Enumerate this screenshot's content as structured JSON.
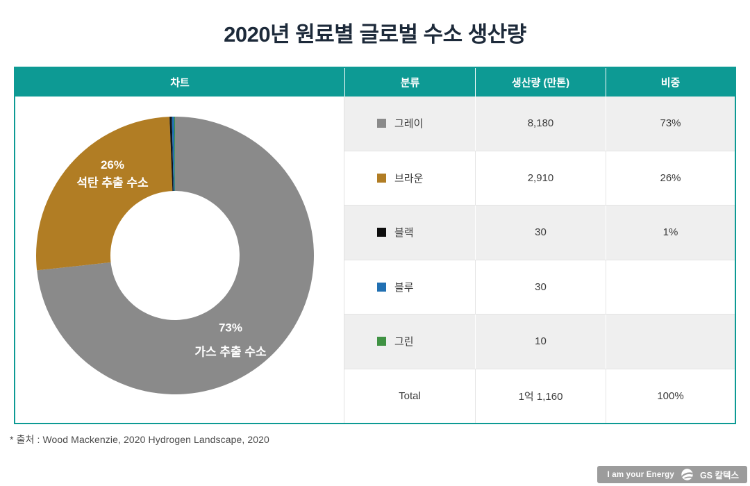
{
  "title": "2020년 원료별 글로벌 수소 생산량",
  "colors": {
    "teal_accent": "#0d9a94",
    "title_navy": "#1d2a3a",
    "row_alt_bg": "#efefef",
    "badge_gray": "#9c9c9c",
    "slice_gray": "#8a8a8a",
    "slice_brown": "#b17d24",
    "slice_black": "#10151c",
    "slice_blue": "#2170b2",
    "slice_green": "#3f9243"
  },
  "table": {
    "headers": [
      "차트",
      "분류",
      "생산량 (만톤)",
      "비중"
    ],
    "rows": [
      {
        "label": "그레이",
        "color": "#8a8a8a",
        "production": "8,180",
        "share": "73%"
      },
      {
        "label": "브라운",
        "color": "#b17d24",
        "production": "2,910",
        "share": "26%"
      },
      {
        "label": "블랙",
        "color": "#0d0d0d",
        "production": "30",
        "share": "1%"
      },
      {
        "label": "블루",
        "color": "#2170b2",
        "production": "30",
        "share": ""
      },
      {
        "label": "그린",
        "color": "#3f9243",
        "production": "10",
        "share": ""
      },
      {
        "label": "Total",
        "color": null,
        "production": "1억 1,160",
        "share": "100%"
      }
    ]
  },
  "chart_data": {
    "type": "pie",
    "donut": true,
    "title": "2020년 원료별 글로벌 수소 생산량",
    "unit": "만톤",
    "categories": [
      "그레이",
      "브라운",
      "블랙",
      "블루",
      "그린"
    ],
    "values": [
      8180,
      2910,
      30,
      30,
      10
    ],
    "percent_labels": [
      "73%",
      "26%",
      "1%",
      "",
      ""
    ],
    "colors": [
      "#8a8a8a",
      "#b17d24",
      "#10151c",
      "#2170b2",
      "#3f9243"
    ],
    "start_angle_deg": 0,
    "direction": "clockwise",
    "donut_labels": {
      "gas": {
        "pct": "73%",
        "name": "가스 추출 수소"
      },
      "coal": {
        "pct": "26%",
        "name": "석탄 추출 수소"
      }
    }
  },
  "footnote": "* 출처 : Wood Mackenzie, 2020 Hydrogen Landscape, 2020",
  "badge": {
    "slogan": "I am your Energy",
    "brand": "GS 칼텍스"
  }
}
